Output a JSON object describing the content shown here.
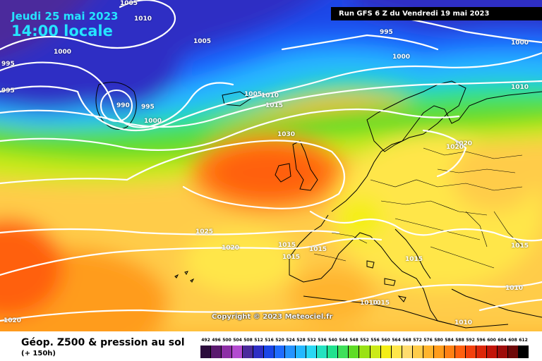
{
  "header": {
    "date": "Jeudi 25 mai 2023",
    "time": "14:00 locale",
    "run": "Run GFS 6 Z du Vendredi 19 mai 2023"
  },
  "copyright": "Copyright © 2023 Meteociel.fr",
  "isobar_labels": [
    "1005",
    "1010",
    "995",
    "1005",
    "1000",
    "995",
    "1000",
    "995",
    "990",
    "995",
    "1000",
    "1005",
    "1010",
    "1015",
    "1030",
    "1000",
    "1010",
    "1020",
    "1020",
    "1025",
    "1020",
    "1015",
    "1015",
    "1015",
    "1015",
    "1015",
    "1015",
    "1010",
    "1010",
    "1010",
    "1020"
  ],
  "footer": {
    "title": "Géop. Z500 & pression au sol",
    "subtitle": "(+ 150h)"
  },
  "legend": {
    "values": [
      "492",
      "496",
      "500",
      "504",
      "508",
      "512",
      "516",
      "520",
      "524",
      "528",
      "532",
      "536",
      "540",
      "544",
      "548",
      "552",
      "556",
      "560",
      "564",
      "568",
      "572",
      "576",
      "580",
      "584",
      "588",
      "592",
      "596",
      "600",
      "604",
      "608",
      "612"
    ],
    "colors": [
      "#2b0c3c",
      "#5a1a6e",
      "#8d2fa6",
      "#b34bd0",
      "#4b2a9c",
      "#2e2ec4",
      "#1a46e8",
      "#1f6cff",
      "#2594ff",
      "#25b8ff",
      "#2ad8f4",
      "#23e2c0",
      "#20e28e",
      "#3ee05a",
      "#5edc26",
      "#9ae214",
      "#ccea18",
      "#f4ee16",
      "#ffe64a",
      "#ffdc6e",
      "#ffcc4a",
      "#ffb42e",
      "#ff9c1c",
      "#ff8014",
      "#ff6010",
      "#f2400c",
      "#dc2608",
      "#c21408",
      "#9e0c0a",
      "#6e0808",
      "#000000"
    ]
  }
}
